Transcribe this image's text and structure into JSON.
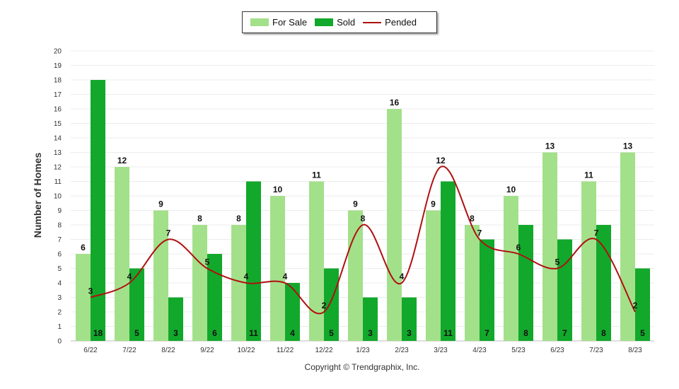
{
  "chart_data": {
    "type": "bar",
    "categories": [
      "6/22",
      "7/22",
      "8/22",
      "9/22",
      "10/22",
      "11/22",
      "12/22",
      "1/23",
      "2/23",
      "3/23",
      "4/23",
      "5/23",
      "6/23",
      "7/23",
      "8/23"
    ],
    "series": [
      {
        "name": "For Sale",
        "type": "bar",
        "color": "#a3e08a",
        "values": [
          6,
          12,
          9,
          8,
          8,
          10,
          11,
          9,
          16,
          9,
          8,
          10,
          13,
          11,
          13
        ]
      },
      {
        "name": "Sold",
        "type": "bar",
        "color": "#12a82b",
        "values": [
          18,
          5,
          3,
          6,
          11,
          4,
          5,
          3,
          3,
          11,
          7,
          8,
          7,
          8,
          5
        ]
      },
      {
        "name": "Pended",
        "type": "line",
        "color": "#b01010",
        "values": [
          3,
          4,
          7,
          5,
          4,
          4,
          2,
          8,
          4,
          12,
          7,
          6,
          5,
          7,
          2
        ]
      }
    ],
    "ylabel": "Number of Homes",
    "ylim": [
      0,
      20
    ],
    "yticks": [
      0,
      1,
      2,
      3,
      4,
      5,
      6,
      7,
      8,
      9,
      10,
      11,
      12,
      13,
      14,
      15,
      16,
      17,
      18,
      19,
      20
    ],
    "grid": true,
    "legend_position": "top-center"
  },
  "legend": {
    "for_sale": "For Sale",
    "sold": "Sold",
    "pended": "Pended"
  },
  "copyright": "Copyright © Trendgraphix, Inc."
}
